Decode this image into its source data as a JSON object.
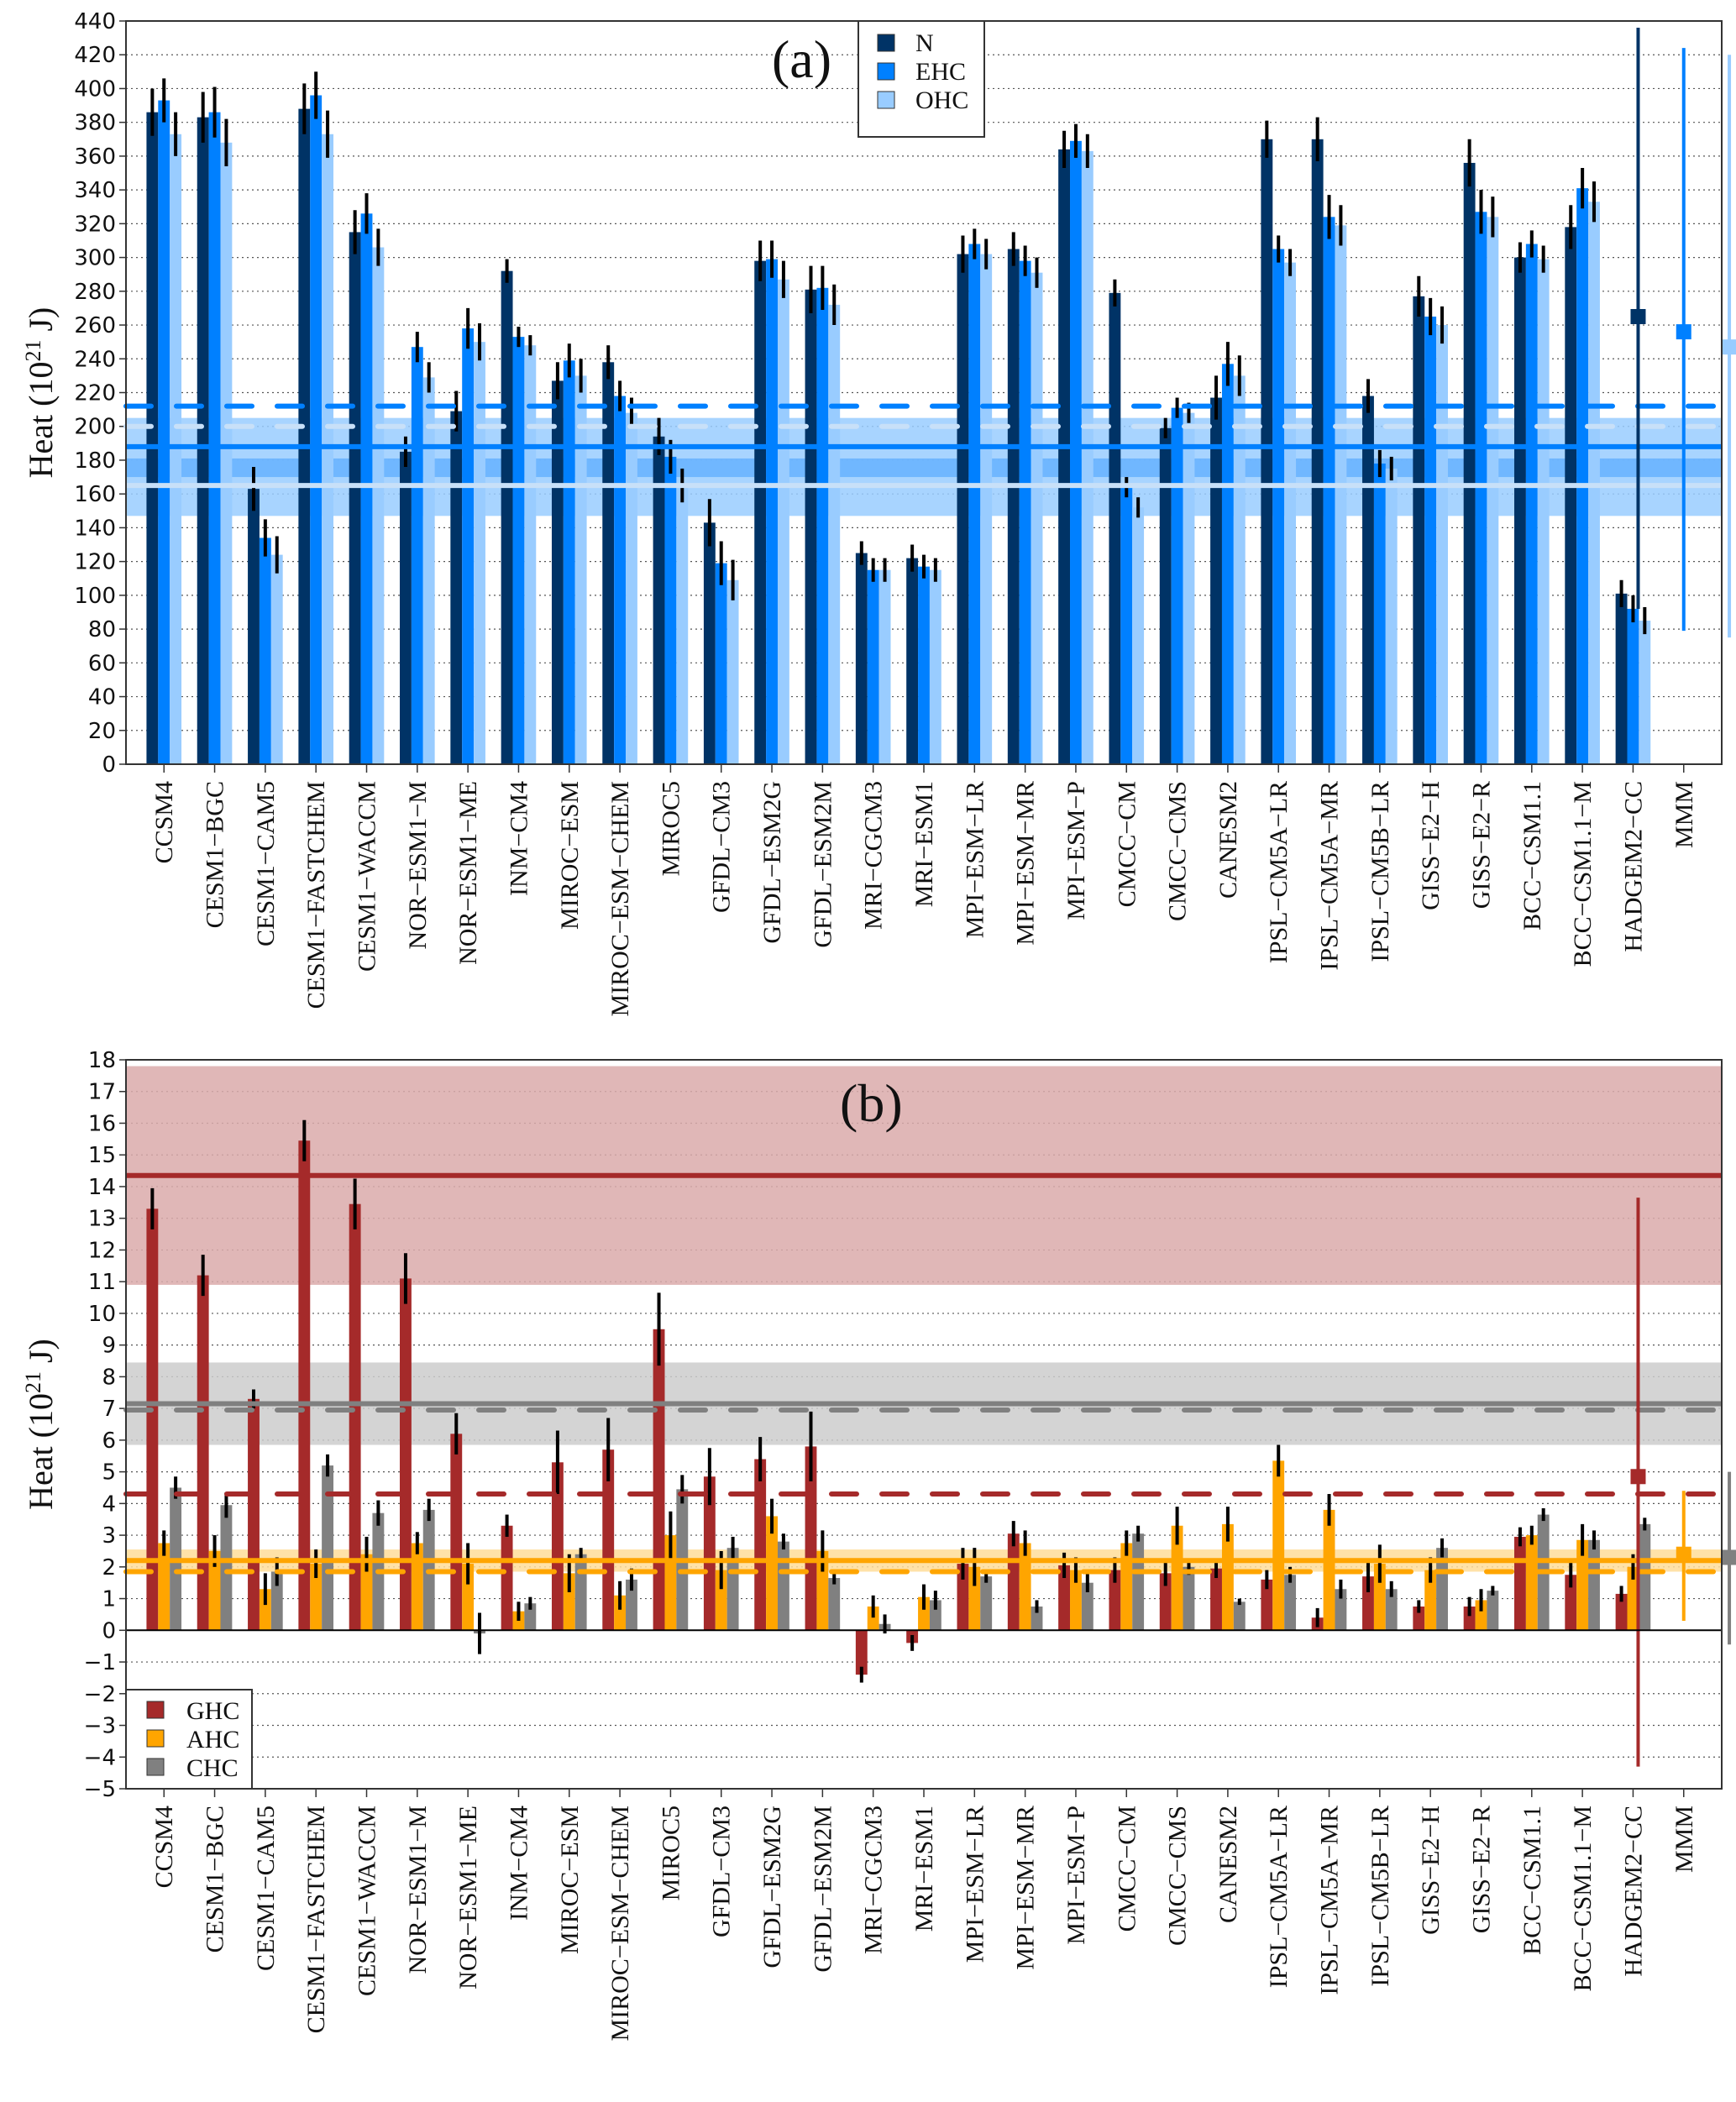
{
  "chart_data": [
    {
      "type": "bar",
      "panel_label": "(a)",
      "ylabel": "Heat (10^21 J)",
      "ylabel_main": "Heat (10",
      "ylabel_exp": "21",
      "ylabel_tail": " J)",
      "ylim": [
        0,
        440
      ],
      "yticks": [
        0,
        20,
        40,
        60,
        80,
        100,
        120,
        140,
        160,
        180,
        200,
        220,
        240,
        260,
        280,
        300,
        320,
        340,
        360,
        380,
        400,
        420,
        440
      ],
      "grid": true,
      "legend_position": "top-center",
      "categories": [
        "CCSM4",
        "CESM1−BGC",
        "CESM1−CAM5",
        "CESM1−FASTCHEM",
        "CESM1−WACCM",
        "NOR−ESM1−M",
        "NOR−ESM1−ME",
        "INM−CM4",
        "MIROC−ESM",
        "MIROC−ESM−CHEM",
        "MIROC5",
        "GFDL−CM3",
        "GFDL−ESM2G",
        "GFDL−ESM2M",
        "MRI−CGCM3",
        "MRI−ESM1",
        "MPI−ESM−LR",
        "MPI−ESM−MR",
        "MPI−ESM−P",
        "CMCC−CM",
        "CMCC−CMS",
        "CANESM2",
        "IPSL−CM5A−LR",
        "IPSL−CM5A−MR",
        "IPSL−CM5B−LR",
        "GISS−E2−H",
        "GISS−E2−R",
        "BCC−CSM1.1",
        "BCC−CSM1.1−M",
        "HADGEM2−CC",
        "MMM"
      ],
      "series": [
        {
          "name": "N",
          "color": "#003366",
          "values": [
            386,
            383,
            163,
            388,
            315,
            185,
            209,
            292,
            227,
            238,
            194,
            143,
            298,
            281,
            125,
            122,
            302,
            305,
            364,
            279,
            199,
            217,
            370,
            370,
            218,
            277,
            356,
            300,
            318,
            101
          ],
          "err": [
            14,
            15,
            13,
            15,
            13,
            9,
            12,
            7,
            11,
            10,
            11,
            14,
            12,
            14,
            7,
            8,
            11,
            10,
            11,
            8,
            6,
            13,
            11,
            13,
            10,
            12,
            14,
            9,
            13,
            8
          ]
        },
        {
          "name": "EHC",
          "color": "#0080FF",
          "values": [
            393,
            386,
            134,
            396,
            326,
            247,
            258,
            253,
            239,
            218,
            182,
            119,
            299,
            282,
            115,
            117,
            308,
            298,
            369,
            164,
            211,
            237,
            305,
            324,
            178,
            265,
            327,
            308,
            341,
            92
          ],
          "err": [
            13,
            15,
            11,
            14,
            12,
            9,
            12,
            6,
            10,
            9,
            10,
            13,
            11,
            13,
            7,
            7,
            9,
            9,
            10,
            6,
            6,
            13,
            8,
            13,
            8,
            11,
            13,
            8,
            12,
            8
          ]
        },
        {
          "name": "OHC",
          "color": "#99CCFF",
          "values": [
            373,
            368,
            124,
            373,
            306,
            229,
            250,
            248,
            230,
            208,
            165,
            109,
            287,
            272,
            115,
            115,
            302,
            291,
            363,
            152,
            208,
            230,
            297,
            319,
            175,
            260,
            324,
            299,
            333,
            85
          ],
          "err": [
            13,
            14,
            11,
            14,
            11,
            9,
            11,
            6,
            10,
            9,
            10,
            12,
            11,
            12,
            7,
            7,
            9,
            9,
            10,
            6,
            6,
            12,
            8,
            12,
            7,
            11,
            12,
            8,
            12,
            8
          ]
        }
      ],
      "mmm": [
        {
          "name": "N",
          "value": 265,
          "range": [
            92,
            436
          ]
        },
        {
          "name": "EHC",
          "value": 256,
          "range": [
            79,
            424
          ]
        },
        {
          "name": "OHC",
          "value": 247,
          "range": [
            75,
            420
          ]
        }
      ],
      "reference_lines": [
        {
          "name": "EHC-dashed",
          "value": 212,
          "style": "dashed",
          "color": "#0080FF"
        },
        {
          "name": "OHC-dashed",
          "value": 200,
          "style": "dashed",
          "color": "#C8E0F8"
        },
        {
          "name": "EHC-solid",
          "value": 188,
          "style": "solid",
          "color": "#0080FF"
        },
        {
          "name": "OHC-solid",
          "value": 165,
          "style": "solid",
          "color": "#C8E0F8"
        }
      ],
      "reference_bands": [
        {
          "name": "OHC-band",
          "range": [
            147,
            205
          ],
          "color": "#99CCFF"
        },
        {
          "name": "EHC-band",
          "range": [
            170,
            181
          ],
          "color": "#66B2FF"
        }
      ]
    },
    {
      "type": "bar",
      "panel_label": "(b)",
      "ylabel": "Heat (10^21 J)",
      "ylabel_main": "Heat (10",
      "ylabel_exp": "21",
      "ylabel_tail": " J)",
      "ylim": [
        -5,
        18
      ],
      "yticks": [
        -5,
        -4,
        -3,
        -2,
        -1,
        0,
        1,
        2,
        3,
        4,
        5,
        6,
        7,
        8,
        9,
        10,
        11,
        12,
        13,
        14,
        15,
        16,
        17,
        18
      ],
      "grid": true,
      "legend_position": "bottom-left",
      "categories": [
        "CCSM4",
        "CESM1−BGC",
        "CESM1−CAM5",
        "CESM1−FASTCHEM",
        "CESM1−WACCM",
        "NOR−ESM1−M",
        "NOR−ESM1−ME",
        "INM−CM4",
        "MIROC−ESM",
        "MIROC−ESM−CHEM",
        "MIROC5",
        "GFDL−CM3",
        "GFDL−ESM2G",
        "GFDL−ESM2M",
        "MRI−CGCM3",
        "MRI−ESM1",
        "MPI−ESM−LR",
        "MPI−ESM−MR",
        "MPI−ESM−P",
        "CMCC−CM",
        "CMCC−CMS",
        "CANESM2",
        "IPSL−CM5A−LR",
        "IPSL−CM5A−MR",
        "IPSL−CM5B−LR",
        "GISS−E2−H",
        "GISS−E2−R",
        "BCC−CSM1.1",
        "BCC−CSM1.1−M",
        "HADGEM2−CC",
        "MMM"
      ],
      "series": [
        {
          "name": "GHC",
          "color": "#A52A2A",
          "values": [
            13.3,
            11.2,
            7.3,
            15.45,
            13.45,
            11.1,
            6.2,
            3.3,
            5.3,
            5.7,
            9.5,
            4.85,
            5.4,
            5.8,
            -1.4,
            -0.4,
            2.1,
            3.05,
            2.05,
            1.9,
            1.8,
            1.95,
            1.6,
            0.4,
            1.7,
            0.75,
            0.75,
            2.95,
            1.75,
            1.15
          ],
          "err": [
            0.65,
            0.65,
            0.3,
            0.65,
            0.8,
            0.8,
            0.65,
            0.35,
            1.0,
            1.0,
            1.15,
            0.9,
            0.7,
            1.1,
            0.25,
            0.25,
            0.5,
            0.4,
            0.4,
            0.4,
            0.4,
            0.3,
            0.3,
            0.3,
            0.5,
            0.2,
            0.3,
            0.3,
            0.4,
            0.25
          ]
        },
        {
          "name": "AHC",
          "color": "#FFA500",
          "values": [
            2.75,
            2.5,
            1.3,
            2.1,
            2.4,
            2.75,
            2.1,
            0.6,
            1.8,
            1.1,
            3.0,
            1.9,
            3.6,
            2.5,
            0.75,
            1.05,
            2.0,
            2.75,
            1.9,
            2.75,
            3.3,
            3.35,
            5.35,
            3.8,
            2.1,
            1.9,
            0.95,
            3.0,
            2.85,
            2.0
          ],
          "err": [
            0.4,
            0.5,
            0.5,
            0.45,
            0.55,
            0.35,
            0.65,
            0.3,
            0.6,
            0.45,
            0.75,
            0.6,
            0.55,
            0.65,
            0.35,
            0.4,
            0.6,
            0.4,
            0.4,
            0.4,
            0.6,
            0.55,
            0.5,
            0.5,
            0.6,
            0.4,
            0.35,
            0.3,
            0.5,
            0.4
          ]
        },
        {
          "name": "CHC",
          "color": "#808080",
          "values": [
            4.5,
            3.95,
            1.85,
            5.2,
            3.7,
            3.8,
            -0.1,
            0.85,
            2.4,
            1.6,
            4.45,
            2.6,
            2.8,
            1.65,
            0.2,
            0.95,
            1.7,
            0.75,
            1.5,
            3.05,
            2.0,
            0.9,
            1.75,
            1.3,
            1.3,
            2.6,
            1.25,
            3.65,
            2.85,
            3.35
          ]
        },
        {
          "name": "CHC-err-placeholder",
          "color": "#808080",
          "values": []
        }
      ],
      "chc_err": [
        0.35,
        0.4,
        0.45,
        0.35,
        0.4,
        0.35,
        0.65,
        0.2,
        0.2,
        0.35,
        0.45,
        0.35,
        0.25,
        0.2,
        0.3,
        0.3,
        0.2,
        0.2,
        0.3,
        0.25,
        0.25,
        0.1,
        0.25,
        0.3,
        0.25,
        0.3,
        0.15,
        0.2,
        0.3,
        0.2
      ],
      "mmm": [
        {
          "name": "GHC",
          "value": 4.85,
          "range": [
            -4.3,
            13.65
          ]
        },
        {
          "name": "AHC",
          "value": 2.4,
          "range": [
            0.3,
            4.4
          ]
        },
        {
          "name": "CHC",
          "value": 2.3,
          "range": [
            -0.45,
            5.0
          ]
        }
      ],
      "reference_lines": [
        {
          "name": "GHC-solid",
          "value": 14.35,
          "style": "solid",
          "color": "#A52A2A"
        },
        {
          "name": "CHC-solid",
          "value": 7.15,
          "style": "solid",
          "color": "#808080"
        },
        {
          "name": "CHC-dashed",
          "value": 6.95,
          "style": "dashed",
          "color": "#808080"
        },
        {
          "name": "GHC-dashed",
          "value": 4.3,
          "style": "dashed",
          "color": "#A52A2A"
        },
        {
          "name": "AHC-solid",
          "value": 2.2,
          "style": "solid",
          "color": "#FFA500"
        },
        {
          "name": "AHC-dashed",
          "value": 1.85,
          "style": "dashed",
          "color": "#FFA500"
        }
      ],
      "reference_bands": [
        {
          "name": "GHC-band",
          "range": [
            10.9,
            17.8
          ],
          "color": "#DBAAAA"
        },
        {
          "name": "CHC-band",
          "range": [
            5.85,
            8.45
          ],
          "color": "#CCCCCC"
        },
        {
          "name": "AHC-band",
          "range": [
            1.85,
            2.55
          ],
          "color": "#FFDD99"
        }
      ]
    }
  ]
}
